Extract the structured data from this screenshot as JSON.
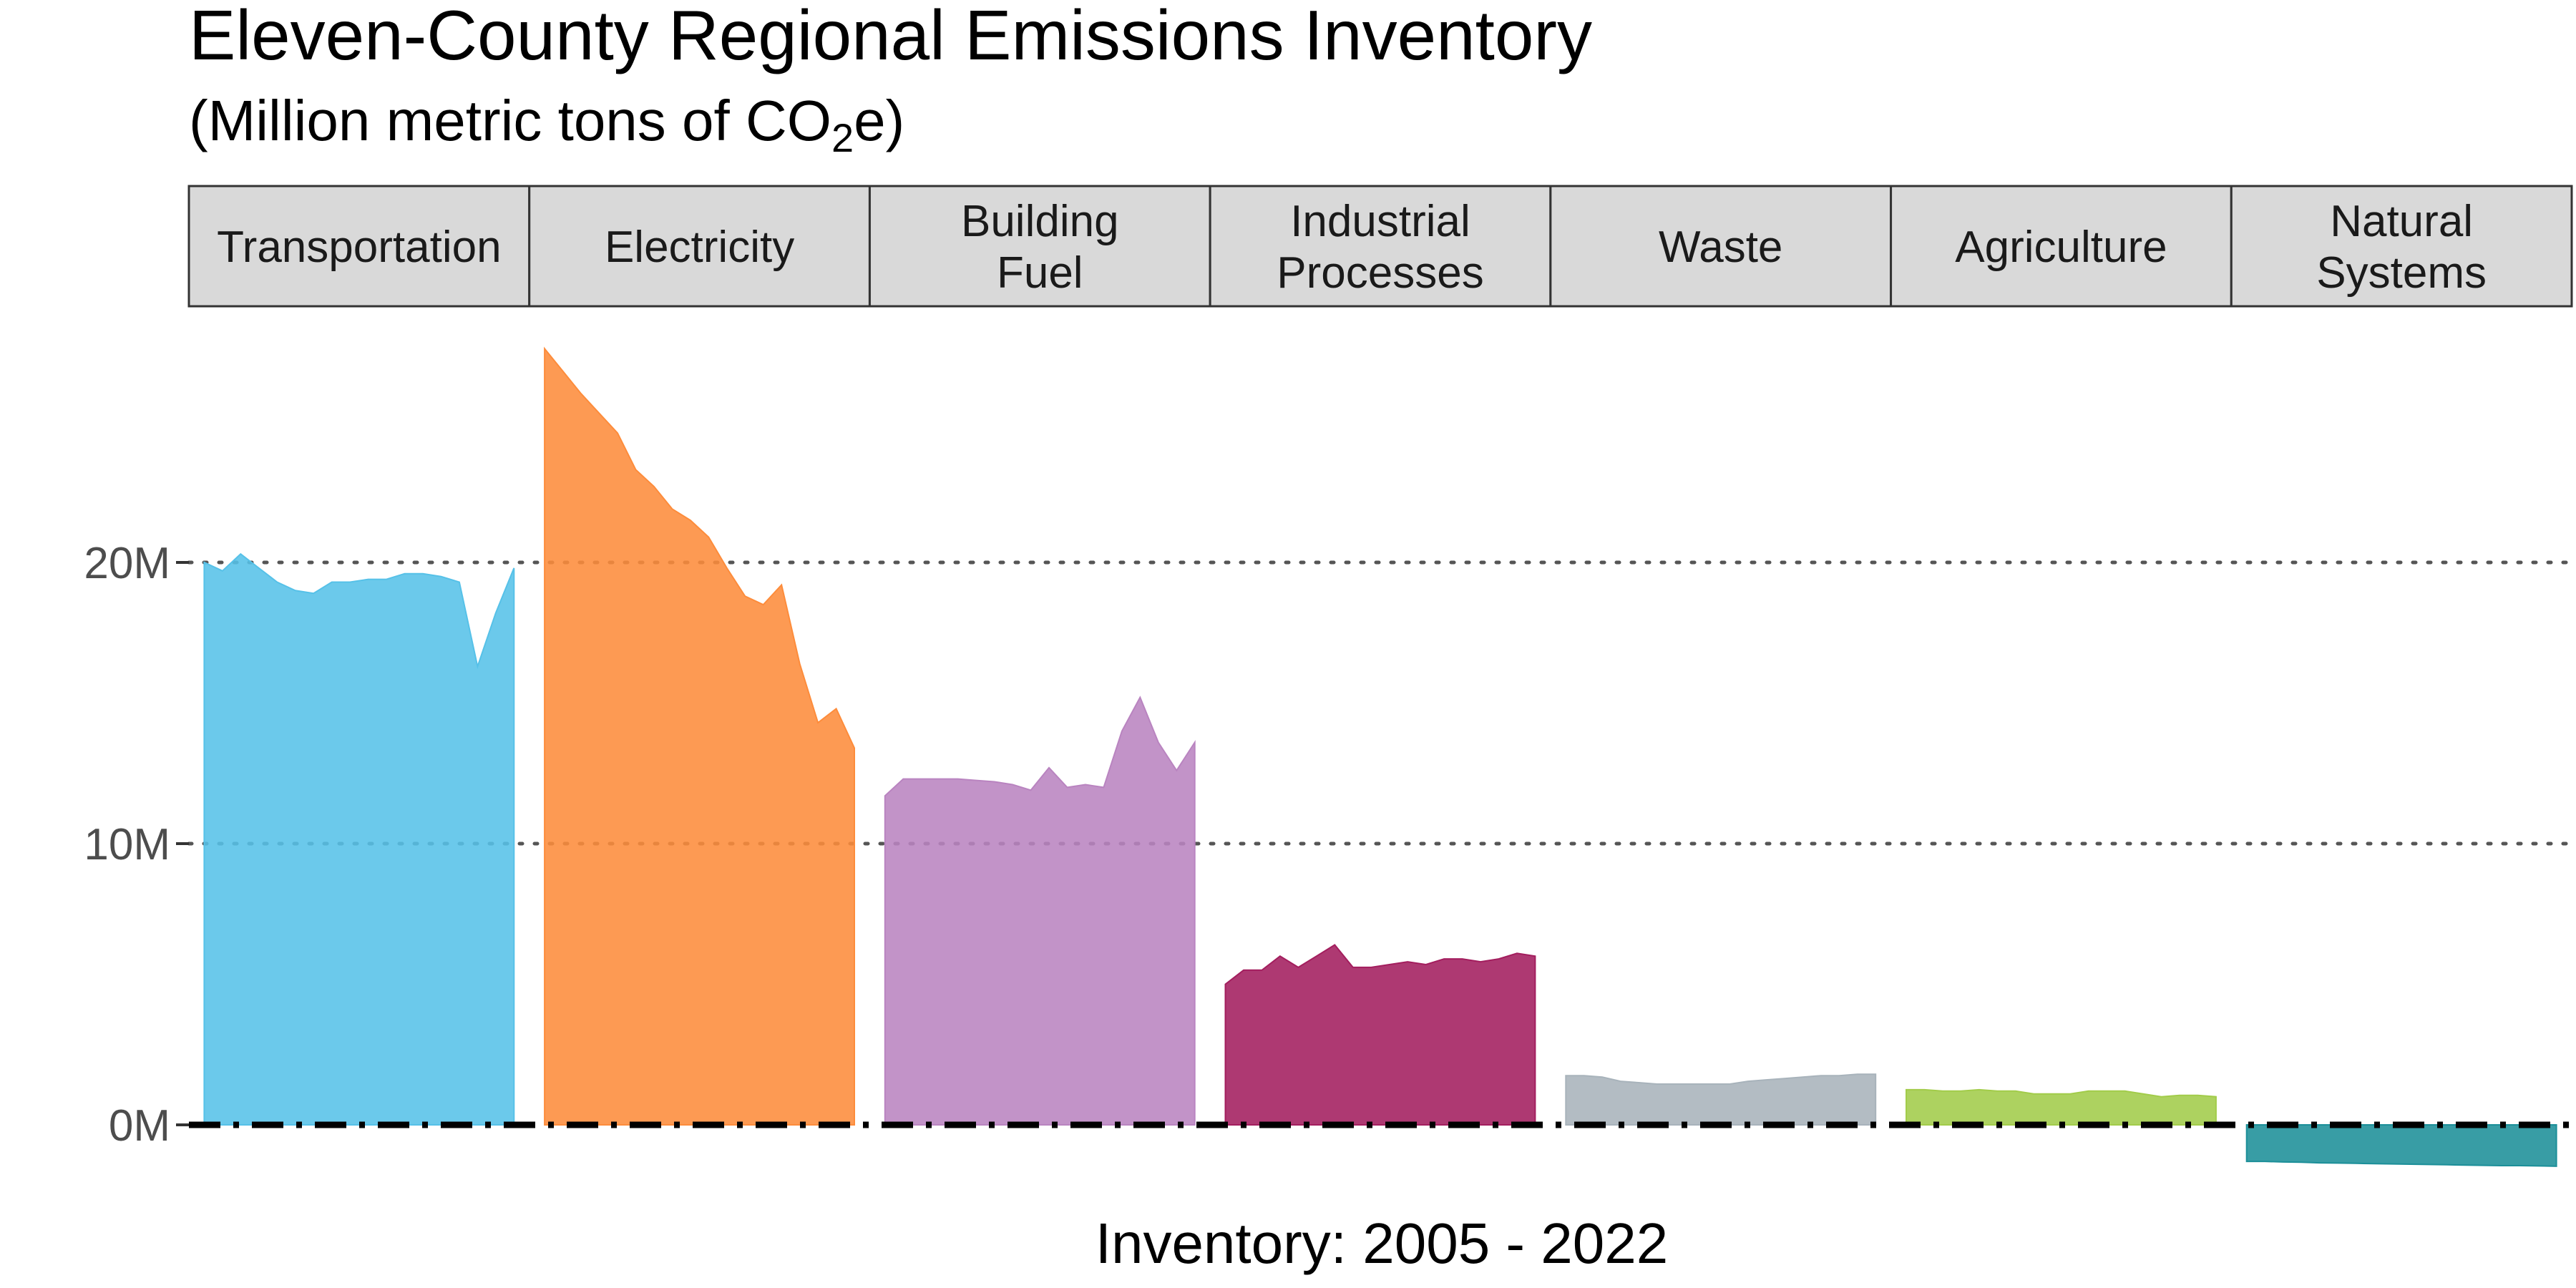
{
  "chart_data": {
    "type": "area",
    "title": "Eleven-County Regional Emissions Inventory",
    "subtitle": {
      "prefix": "(Million metric tons of CO",
      "subscript": "2",
      "suffix": "e)"
    },
    "xlabel": "Inventory: 2005 - 2022",
    "ylabel": "",
    "ylim": [
      -1.6,
      28
    ],
    "yticks": [
      {
        "value": 0,
        "label": "0M"
      },
      {
        "value": 10,
        "label": "10M"
      },
      {
        "value": 20,
        "label": "20M"
      }
    ],
    "grid": "dotted horizontal major gridlines",
    "reference_line": {
      "value": 0,
      "style": "dashed"
    },
    "x": [
      2005,
      2006,
      2007,
      2008,
      2009,
      2010,
      2011,
      2012,
      2013,
      2014,
      2015,
      2016,
      2017,
      2018,
      2019,
      2020,
      2021,
      2022
    ],
    "panels": [
      {
        "label_lines": [
          "Transportation"
        ],
        "color": "#56C1E8",
        "values": [
          20.0,
          19.7,
          20.3,
          19.8,
          19.3,
          19.0,
          18.9,
          19.3,
          19.3,
          19.4,
          19.4,
          19.6,
          19.6,
          19.5,
          19.3,
          16.3,
          18.2,
          19.8
        ]
      },
      {
        "label_lines": [
          "Electricity"
        ],
        "color": "#FD8C3B",
        "values": [
          27.6,
          26.8,
          26.0,
          25.3,
          24.6,
          23.3,
          22.7,
          21.9,
          21.5,
          20.9,
          19.8,
          18.8,
          18.5,
          19.2,
          16.4,
          14.3,
          14.8,
          13.4
        ]
      },
      {
        "label_lines": [
          "Building",
          "Fuel"
        ],
        "color": "#B984C0",
        "values": [
          11.7,
          12.3,
          12.3,
          12.3,
          12.3,
          12.25,
          12.2,
          12.1,
          11.9,
          12.7,
          12.0,
          12.1,
          12.0,
          14.0,
          15.2,
          13.6,
          12.6,
          13.6
        ]
      },
      {
        "label_lines": [
          "Industrial",
          "Processes"
        ],
        "color": "#A31E5E",
        "values": [
          5.0,
          5.5,
          5.5,
          6.0,
          5.6,
          6.0,
          6.4,
          5.6,
          5.6,
          5.7,
          5.8,
          5.7,
          5.9,
          5.9,
          5.8,
          5.9,
          6.1,
          6.0
        ]
      },
      {
        "label_lines": [
          "Waste"
        ],
        "color": "#A8B3BB",
        "values": [
          1.75,
          1.75,
          1.7,
          1.55,
          1.5,
          1.45,
          1.45,
          1.45,
          1.45,
          1.45,
          1.55,
          1.6,
          1.65,
          1.7,
          1.75,
          1.75,
          1.8,
          1.8
        ]
      },
      {
        "label_lines": [
          "Agriculture"
        ],
        "color": "#A2CC4A",
        "values": [
          1.25,
          1.25,
          1.2,
          1.2,
          1.25,
          1.2,
          1.2,
          1.1,
          1.1,
          1.1,
          1.2,
          1.2,
          1.2,
          1.1,
          1.0,
          1.05,
          1.05,
          1.0
        ]
      },
      {
        "label_lines": [
          "Natural",
          "Systems"
        ],
        "color": "#1C8F99",
        "values": [
          -1.3,
          -1.3,
          -1.32,
          -1.33,
          -1.35,
          -1.36,
          -1.37,
          -1.38,
          -1.39,
          -1.4,
          -1.41,
          -1.42,
          -1.43,
          -1.44,
          -1.45,
          -1.45,
          -1.46,
          -1.47
        ]
      }
    ]
  }
}
